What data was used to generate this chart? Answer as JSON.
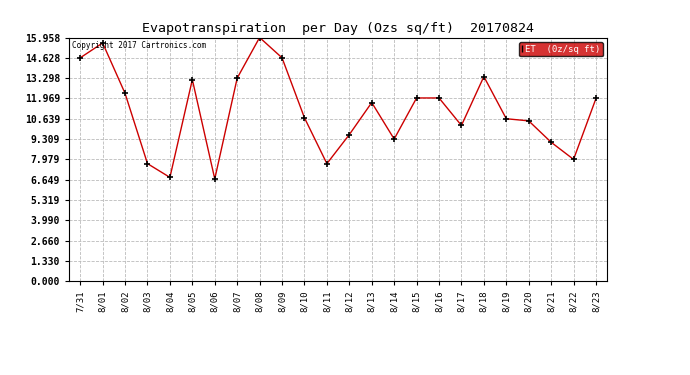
{
  "title": "Evapotranspiration  per Day (Ozs sq/ft)  20170824",
  "copyright": "Copyright 2017 Cartronics.com",
  "legend_label": "ET  (0z/sq ft)",
  "legend_facecolor": "#cc0000",
  "background_color": "#ffffff",
  "plot_bg_color": "#ffffff",
  "line_color": "#cc0000",
  "marker_color": "#000000",
  "grid_color": "#bbbbbb",
  "yticks": [
    0.0,
    1.33,
    2.66,
    3.99,
    5.319,
    6.649,
    7.979,
    9.309,
    10.639,
    11.969,
    13.298,
    14.628,
    15.958
  ],
  "ylim": [
    0.0,
    15.958
  ],
  "dates": [
    "7/31",
    "8/01",
    "8/02",
    "8/03",
    "8/04",
    "8/05",
    "8/06",
    "8/07",
    "8/08",
    "8/09",
    "8/10",
    "8/11",
    "8/12",
    "8/13",
    "8/14",
    "8/15",
    "8/16",
    "8/17",
    "8/18",
    "8/19",
    "8/20",
    "8/21",
    "8/22",
    "8/23"
  ],
  "values": [
    14.628,
    15.6,
    12.3,
    7.7,
    6.8,
    13.2,
    6.7,
    13.298,
    15.958,
    14.628,
    10.7,
    7.7,
    9.6,
    11.7,
    9.309,
    12.0,
    12.0,
    10.2,
    13.4,
    10.639,
    10.5,
    9.1,
    7.979,
    11.969
  ]
}
